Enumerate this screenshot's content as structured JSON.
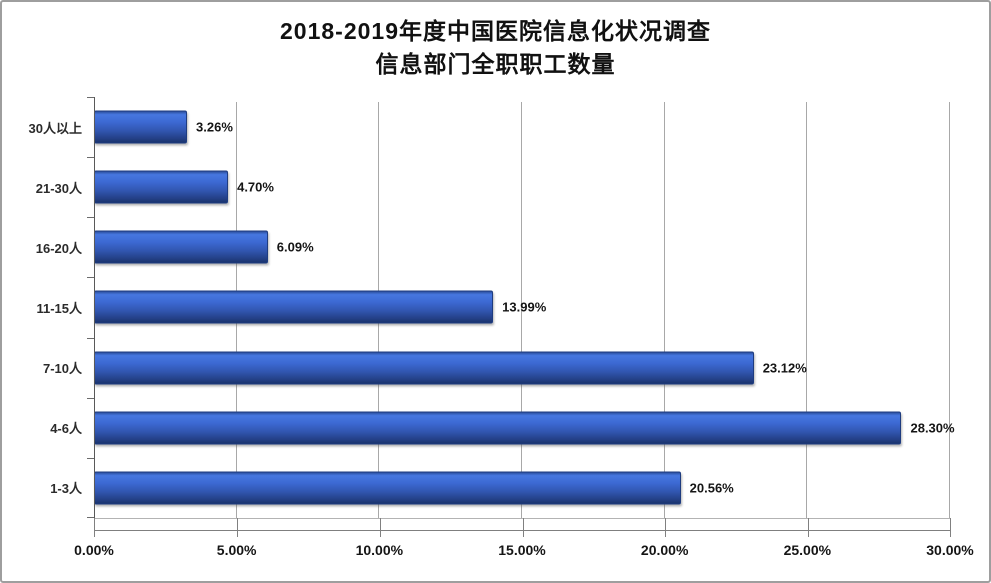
{
  "title": {
    "line1": "2018-2019年度中国医院信息化状况调查",
    "line2": "信息部门全职职工数量"
  },
  "chart_data": {
    "type": "bar",
    "orientation": "horizontal",
    "title": "2018-2019年度中国医院信息化状况调查 信息部门全职职工数量",
    "categories": [
      "30人以上",
      "21-30人",
      "16-20人",
      "11-15人",
      "7-10人",
      "4-6人",
      "1-3人"
    ],
    "values": [
      3.26,
      4.7,
      6.09,
      13.99,
      23.12,
      28.3,
      20.56
    ],
    "value_labels": [
      "3.26%",
      "4.70%",
      "6.09%",
      "13.99%",
      "23.12%",
      "28.30%",
      "20.56%"
    ],
    "x_ticks": [
      "0.00%",
      "5.00%",
      "10.00%",
      "15.00%",
      "20.00%",
      "25.00%",
      "30.00%"
    ],
    "xlim": [
      0,
      30
    ],
    "grid": true,
    "legend": false,
    "xlabel": "",
    "ylabel": "",
    "bar_color": "#3b65cb",
    "gridline_color": "#a8a8a8",
    "axis_color": "#595959"
  }
}
